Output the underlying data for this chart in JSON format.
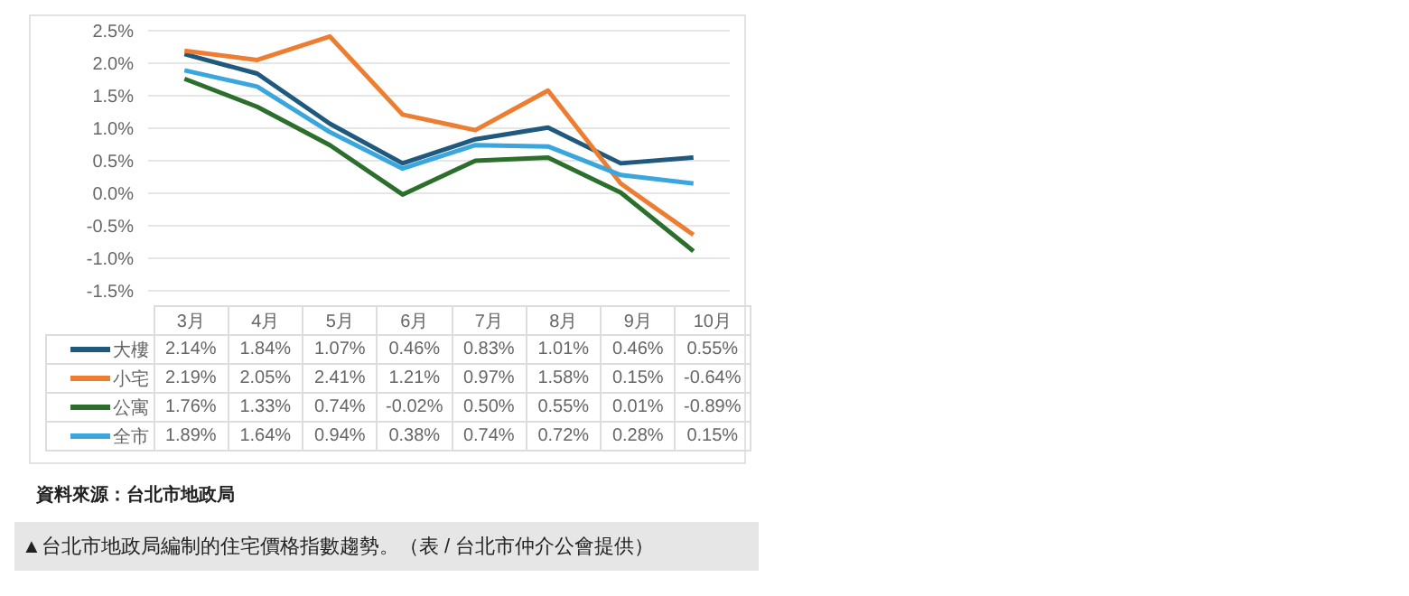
{
  "chart_data": {
    "type": "line",
    "categories": [
      "3月",
      "4月",
      "5月",
      "6月",
      "7月",
      "8月",
      "9月",
      "10月"
    ],
    "series": [
      {
        "name": "大樓",
        "color": "#1f5a7e",
        "values": [
          2.14,
          1.84,
          1.07,
          0.46,
          0.83,
          1.01,
          0.46,
          0.55
        ],
        "value_labels": [
          "2.14%",
          "1.84%",
          "1.07%",
          "0.46%",
          "0.83%",
          "1.01%",
          "0.46%",
          "0.55%"
        ]
      },
      {
        "name": "小宅",
        "color": "#ed7d31",
        "values": [
          2.19,
          2.05,
          2.41,
          1.21,
          0.97,
          1.58,
          0.15,
          -0.64
        ],
        "value_labels": [
          "2.19%",
          "2.05%",
          "2.41%",
          "1.21%",
          "0.97%",
          "1.58%",
          "0.15%",
          "-0.64%"
        ]
      },
      {
        "name": "公寓",
        "color": "#2c6e2c",
        "values": [
          1.76,
          1.33,
          0.74,
          -0.02,
          0.5,
          0.55,
          0.01,
          -0.89
        ],
        "value_labels": [
          "1.76%",
          "1.33%",
          "0.74%",
          "-0.02%",
          "0.50%",
          "0.55%",
          "0.01%",
          "-0.89%"
        ]
      },
      {
        "name": "全市",
        "color": "#3aa6dd",
        "values": [
          1.89,
          1.64,
          0.94,
          0.38,
          0.74,
          0.72,
          0.28,
          0.15
        ],
        "value_labels": [
          "1.89%",
          "1.64%",
          "0.94%",
          "0.38%",
          "0.74%",
          "0.72%",
          "0.28%",
          "0.15%"
        ]
      }
    ],
    "ylim": [
      -1.5,
      2.5
    ],
    "yticks": [
      {
        "value": 2.5,
        "label": "2.5%"
      },
      {
        "value": 2.0,
        "label": "2.0%"
      },
      {
        "value": 1.5,
        "label": "1.5%"
      },
      {
        "value": 1.0,
        "label": "1.0%"
      },
      {
        "value": 0.5,
        "label": "0.5%"
      },
      {
        "value": 0.0,
        "label": "0.0%"
      },
      {
        "value": -0.5,
        "label": "-0.5%"
      },
      {
        "value": -1.0,
        "label": "-1.0%"
      },
      {
        "value": -1.5,
        "label": "-1.5%"
      }
    ],
    "grid": "y",
    "legend": "bottom",
    "marker": "none",
    "line_style": "solid",
    "annotations": [
      "資料來源：台北市地政局",
      "▲台北市地政局編制的住宅價格指數趨勢。（表 / 台北市仲介公會提供）"
    ]
  }
}
